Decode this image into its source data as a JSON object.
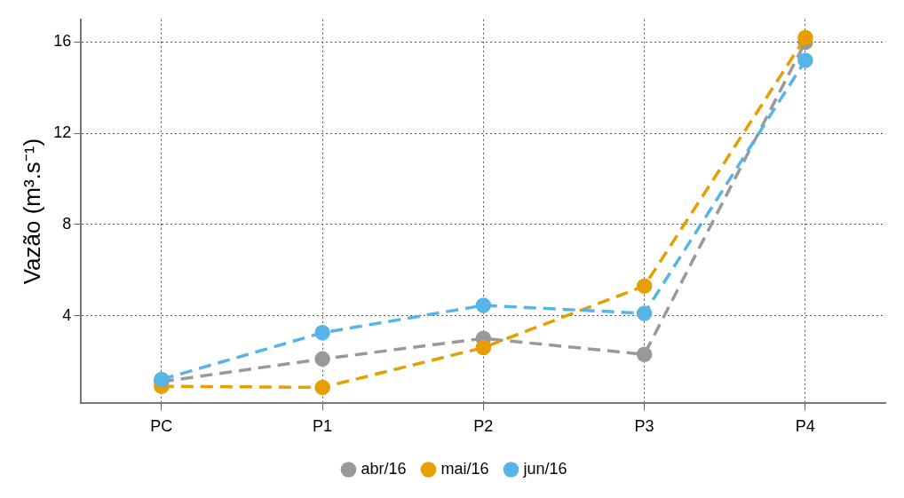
{
  "chart_data": {
    "type": "line",
    "ylabel": "Vazão (m³.s⁻¹)",
    "categories": [
      "PC",
      "P1",
      "P2",
      "P3",
      "P4"
    ],
    "series": [
      {
        "name": "abr/16",
        "color": "#999999",
        "values": [
          1.1,
          2.1,
          3.0,
          2.3,
          16.0
        ]
      },
      {
        "name": "mai/16",
        "color": "#e69f00",
        "values": [
          0.9,
          0.85,
          2.6,
          5.3,
          16.2
        ]
      },
      {
        "name": "jun/16",
        "color": "#56b4e9",
        "values": [
          1.2,
          3.25,
          4.45,
          4.1,
          15.2
        ]
      }
    ],
    "ylim": [
      0.15,
      17
    ],
    "yticks": [
      4,
      8,
      12,
      16
    ],
    "grid": true,
    "legend": "bottom",
    "marker": "circle",
    "line_style": "dashed"
  }
}
